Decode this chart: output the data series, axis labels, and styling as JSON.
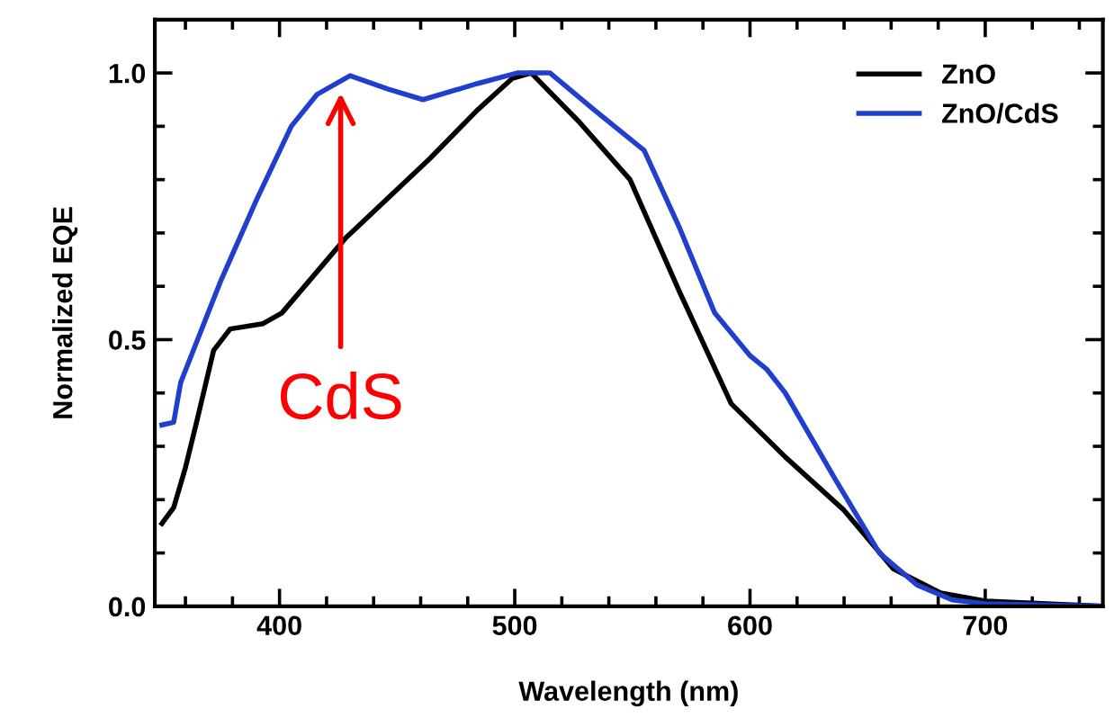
{
  "chart_data": {
    "type": "line",
    "xlabel": "Wavelength (nm)",
    "ylabel": "Normalized EQE",
    "xlim": [
      347,
      750
    ],
    "xticks": [
      400,
      500,
      600,
      700
    ],
    "ylim": [
      0,
      1.1
    ],
    "yticks": [
      {
        "value": 0,
        "label": "0.0"
      },
      0.5,
      {
        "value": 1,
        "label": "1.0"
      }
    ],
    "grid": false,
    "legend": "top right",
    "marker": "none",
    "line_style": "solid",
    "annotations": [
      "CdS"
    ],
    "series": [
      {
        "name": "ZnO",
        "color": "#000000",
        "x": [
          350,
          355,
          360,
          365,
          372,
          379,
          393,
          401,
          428,
          464,
          484,
          499,
          507,
          527,
          549,
          570,
          592,
          615,
          640,
          661,
          681,
          700,
          750
        ],
        "values": [
          0.155,
          0.185,
          0.26,
          0.35,
          0.48,
          0.52,
          0.53,
          0.55,
          0.69,
          0.84,
          0.93,
          0.99,
          1.0,
          0.91,
          0.8,
          0.59,
          0.38,
          0.28,
          0.18,
          0.07,
          0.025,
          0.01,
          0.0
        ]
      },
      {
        "name": "ZnO/CdS",
        "color": "#1f3fcc",
        "x": [
          350,
          355,
          358,
          375,
          390,
          405,
          416,
          430,
          446,
          461,
          484,
          501,
          515,
          534,
          555,
          570,
          585,
          600,
          607,
          615,
          636,
          655,
          671,
          686,
          700,
          750
        ],
        "values": [
          0.34,
          0.345,
          0.42,
          0.61,
          0.76,
          0.9,
          0.96,
          0.995,
          0.97,
          0.95,
          0.98,
          1.0,
          1.0,
          0.93,
          0.855,
          0.71,
          0.55,
          0.47,
          0.445,
          0.4,
          0.24,
          0.1,
          0.04,
          0.012,
          0.005,
          0.0
        ]
      }
    ]
  }
}
